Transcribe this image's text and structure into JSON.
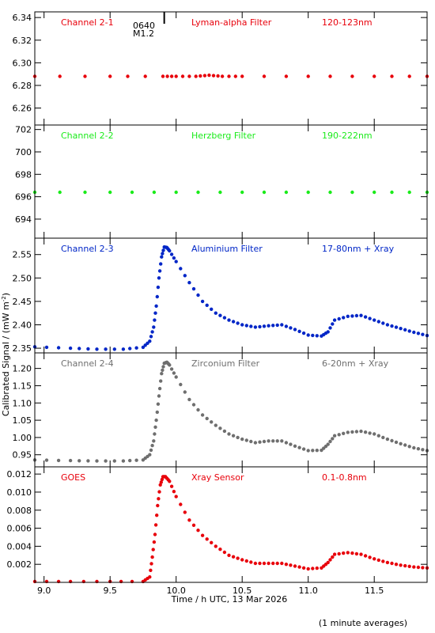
{
  "axes": {
    "ylabel": "Calibrated Signal / (mW m",
    "ylabel_sup": "-2",
    "ylabel_end": ")",
    "xlabel": "Time / h UTC, 13 Mar 2026",
    "footnote": "(1 minute averages)",
    "flare_time": "0640",
    "flare_class": "M1.2",
    "xlim": [
      8.93,
      11.9
    ],
    "xticks": [
      "9.0",
      "9.5",
      "10.0",
      "10.5",
      "11.0",
      "11.5"
    ],
    "xtick_values": [
      9.0,
      9.5,
      10.0,
      10.5,
      11.0,
      11.5
    ],
    "flare_marker_x": 9.91
  },
  "chart_data": [
    {
      "type": "scatter",
      "title": "Channel 2-1",
      "filter": "Lyman-alpha Filter",
      "band": "120-123nm",
      "color": "#e8000b",
      "ylim": [
        6.245,
        6.345
      ],
      "yticks": [
        "6.26",
        "6.28",
        "6.30",
        "6.32",
        "6.34"
      ],
      "ytick_values": [
        6.26,
        6.28,
        6.3,
        6.32,
        6.34
      ],
      "x": [
        8.93,
        9.5,
        9.9,
        10.0,
        10.15,
        10.25,
        10.35,
        10.5,
        11.0,
        11.5,
        11.9
      ],
      "y": [
        6.288,
        6.288,
        6.288,
        6.288,
        6.288,
        6.289,
        6.288,
        6.288,
        6.288,
        6.288,
        6.288
      ]
    },
    {
      "type": "scatter",
      "title": "Channel 2-2",
      "filter": "Herzberg Filter",
      "band": "190-222nm",
      "color": "#1aeb1a",
      "ylim": [
        692.3,
        702.4
      ],
      "yticks": [
        "694",
        "696",
        "698",
        "700",
        "702"
      ],
      "ytick_values": [
        694,
        696,
        698,
        700,
        702
      ],
      "x": [
        8.93,
        9.5,
        10.0,
        10.5,
        11.0,
        11.5,
        11.9
      ],
      "y": [
        696.4,
        696.4,
        696.4,
        696.4,
        696.4,
        696.4,
        696.4
      ]
    },
    {
      "type": "scatter",
      "title": "Channel 2-3",
      "filter": "Aluminium Filter",
      "band": "17-80nm + Xray",
      "color": "#0026c7",
      "ylim": [
        2.34,
        2.585
      ],
      "yticks": [
        "2.35",
        "2.40",
        "2.45",
        "2.50",
        "2.55"
      ],
      "ytick_values": [
        2.35,
        2.4,
        2.45,
        2.5,
        2.55
      ],
      "x": [
        8.93,
        9.2,
        9.4,
        9.6,
        9.75,
        9.8,
        9.83,
        9.85,
        9.87,
        9.89,
        9.91,
        9.93,
        9.95,
        10.0,
        10.1,
        10.2,
        10.3,
        10.4,
        10.5,
        10.6,
        10.7,
        10.8,
        10.9,
        11.0,
        11.1,
        11.15,
        11.2,
        11.3,
        11.4,
        11.5,
        11.6,
        11.7,
        11.8,
        11.9
      ],
      "y": [
        2.353,
        2.35,
        2.348,
        2.348,
        2.352,
        2.365,
        2.395,
        2.44,
        2.5,
        2.545,
        2.566,
        2.565,
        2.558,
        2.535,
        2.49,
        2.45,
        2.425,
        2.41,
        2.4,
        2.395,
        2.398,
        2.4,
        2.39,
        2.378,
        2.376,
        2.385,
        2.41,
        2.418,
        2.42,
        2.41,
        2.4,
        2.392,
        2.384,
        2.377
      ]
    },
    {
      "type": "scatter",
      "title": "Channel 2-4",
      "filter": "Zirconium Filter",
      "band": "6-20nm + Xray",
      "color": "#6f6f6f",
      "ylim": [
        0.915,
        1.245
      ],
      "yticks": [
        "0.95",
        "1.00",
        "1.05",
        "1.10",
        "1.15",
        "1.20"
      ],
      "ytick_values": [
        0.95,
        1.0,
        1.05,
        1.1,
        1.15,
        1.2
      ],
      "x": [
        8.93,
        9.2,
        9.4,
        9.6,
        9.75,
        9.8,
        9.83,
        9.85,
        9.87,
        9.89,
        9.91,
        9.93,
        9.95,
        10.0,
        10.1,
        10.2,
        10.3,
        10.4,
        10.5,
        10.6,
        10.7,
        10.8,
        10.9,
        11.0,
        11.1,
        11.15,
        11.2,
        11.3,
        11.4,
        11.5,
        11.6,
        11.7,
        11.8,
        11.9
      ],
      "y": [
        0.935,
        0.933,
        0.932,
        0.932,
        0.935,
        0.95,
        0.99,
        1.05,
        1.12,
        1.185,
        1.215,
        1.218,
        1.21,
        1.175,
        1.11,
        1.065,
        1.035,
        1.01,
        0.995,
        0.985,
        0.99,
        0.99,
        0.975,
        0.962,
        0.963,
        0.98,
        1.005,
        1.015,
        1.018,
        1.01,
        0.995,
        0.982,
        0.97,
        0.962
      ]
    },
    {
      "type": "scatter",
      "title": "GOES",
      "filter": "Xray Sensor",
      "band": "0.1-0.8nm",
      "color": "#e8000b",
      "ylim": [
        0.0,
        0.0128
      ],
      "yticks": [
        "0.002",
        "0.004",
        "0.006",
        "0.008",
        "0.010",
        "0.012"
      ],
      "ytick_values": [
        0.002,
        0.004,
        0.006,
        0.008,
        0.01,
        0.012
      ],
      "x": [
        8.93,
        9.2,
        9.5,
        9.75,
        9.8,
        9.82,
        9.84,
        9.86,
        9.88,
        9.9,
        9.92,
        9.95,
        10.0,
        10.1,
        10.2,
        10.3,
        10.4,
        10.5,
        10.6,
        10.7,
        10.8,
        10.9,
        11.0,
        11.1,
        11.15,
        11.2,
        11.3,
        11.4,
        11.5,
        11.6,
        11.7,
        11.8,
        11.9
      ],
      "y": [
        0.0001,
        0.0001,
        0.0001,
        0.0001,
        0.0006,
        0.0028,
        0.0053,
        0.0085,
        0.0108,
        0.0117,
        0.0117,
        0.0112,
        0.0095,
        0.0069,
        0.0052,
        0.004,
        0.003,
        0.0025,
        0.0021,
        0.0021,
        0.0021,
        0.0018,
        0.0015,
        0.0016,
        0.0022,
        0.0031,
        0.0033,
        0.0031,
        0.0026,
        0.0022,
        0.0019,
        0.0017,
        0.0016
      ]
    }
  ]
}
